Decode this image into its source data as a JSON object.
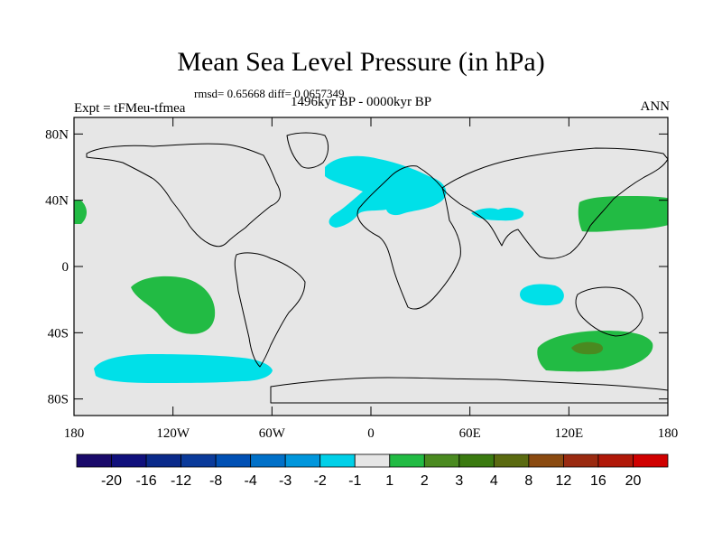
{
  "header": {
    "title": "Mean Sea Level Pressure (in hPa)",
    "stats": "rmsd= 0.65668 diff= 0.0657349",
    "experiment": "Expt = tFMeu-tfmea",
    "period": "1496kyr BP - 0000kyr BP",
    "season": "ANN"
  },
  "axes": {
    "lat_labels": [
      "80N",
      "40N",
      "0",
      "40S",
      "80S"
    ],
    "lat_values": [
      80,
      40,
      0,
      -40,
      -80
    ],
    "lon_labels": [
      "180",
      "120W",
      "60W",
      "0",
      "60E",
      "120E",
      "180"
    ],
    "lon_values": [
      -180,
      -120,
      -60,
      0,
      60,
      120,
      180
    ]
  },
  "map_colors": {
    "background": "#e6e6e6",
    "frame": "#000000",
    "coast": "#000000"
  },
  "anomaly_regions": [
    {
      "name": "north-atlantic-europe-negative",
      "bin": "-2 to -1",
      "color": "#00e0e8"
    },
    {
      "name": "arabian-sea-negative",
      "bin": "-2 to -1",
      "color": "#00e0e8"
    },
    {
      "name": "indian-ocean-negative",
      "bin": "-2 to -1",
      "color": "#00e0e8"
    },
    {
      "name": "south-pacific-negative",
      "bin": "-2 to -1",
      "color": "#00e0e8"
    },
    {
      "name": "north-pacific-positive",
      "bin": "1 to 2",
      "color": "#22bb44"
    },
    {
      "name": "west-pacific-edge-positive",
      "bin": "1 to 2",
      "color": "#22bb44"
    },
    {
      "name": "south-pacific-positive",
      "bin": "1 to 2",
      "color": "#22bb44"
    },
    {
      "name": "southern-indian-ocean-positive",
      "bin": "1 to 2",
      "color": "#22bb44"
    },
    {
      "name": "southern-indian-ocean-core",
      "bin": "2 to 3",
      "color": "#4a8a20"
    }
  ],
  "colorbar": {
    "labels": [
      "-20",
      "-16",
      "-12",
      "-8",
      "-4",
      "-3",
      "-2",
      "-1",
      "1",
      "2",
      "3",
      "4",
      "8",
      "12",
      "16",
      "20"
    ],
    "colors": [
      "#1a0a6a",
      "#10107c",
      "#0a2a8a",
      "#0a3a9a",
      "#0050b4",
      "#0070c8",
      "#0096dc",
      "#00d0e8",
      "#e6e6e6",
      "#22bb44",
      "#4a8a20",
      "#3a7a10",
      "#5a6a10",
      "#8a4a10",
      "#9a2a10",
      "#b01808",
      "#d00000"
    ]
  }
}
